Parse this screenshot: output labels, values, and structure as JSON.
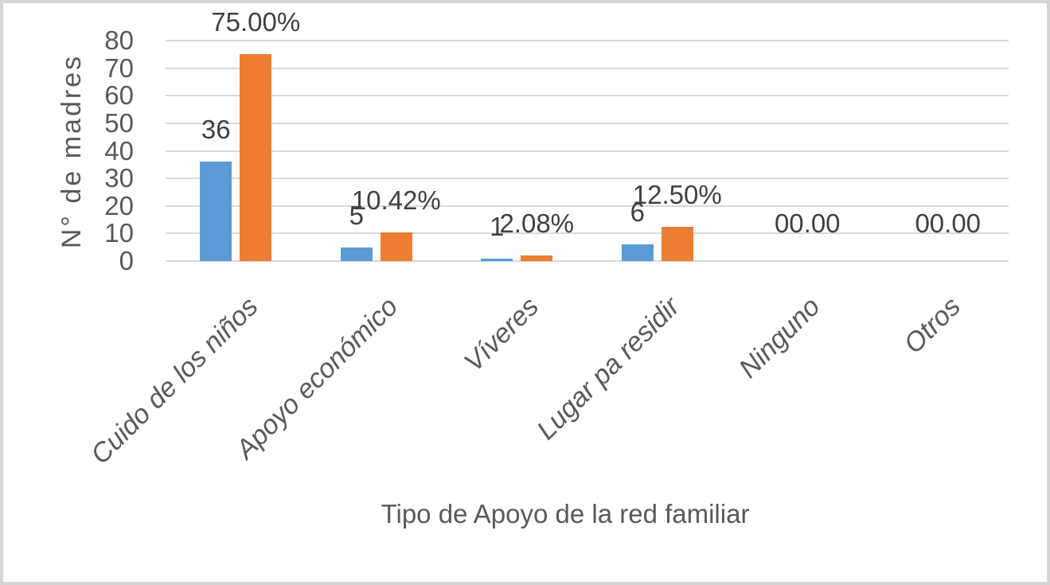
{
  "chart_data": {
    "type": "bar",
    "title": "",
    "xlabel": "Tipo de Apoyo de la red familiar",
    "ylabel": "N° de madres",
    "ylim": [
      0,
      80
    ],
    "yticks": [
      0,
      10,
      20,
      30,
      40,
      50,
      60,
      70,
      80
    ],
    "grid": true,
    "legend": false,
    "categories": [
      "Cuido de los niños",
      "Apoyo económico",
      "Víveres",
      "Lugar pa residir",
      "Ninguno",
      "Otros"
    ],
    "series": [
      {
        "name": "series_1",
        "color": "#5b9bd5",
        "values": [
          36,
          5,
          1,
          6,
          0,
          0
        ],
        "data_labels": [
          "36",
          "5",
          "1",
          "6",
          "",
          ""
        ]
      },
      {
        "name": "series_2",
        "color": "#ed7d31",
        "values": [
          75,
          10.42,
          2.08,
          12.5,
          0,
          0
        ],
        "data_labels": [
          "75.00%",
          "10.42%",
          "2.08%",
          "12.50%",
          "",
          ""
        ]
      }
    ],
    "overlapped_zero_labels": [
      {
        "category": "Ninguno",
        "text": "00.00"
      },
      {
        "category": "Otros",
        "text": "00.00"
      }
    ]
  },
  "colors": {
    "bar_blue": "#5b9bd5",
    "bar_orange": "#ed7d31",
    "gridline": "#d9d9d9",
    "axis_text": "#595959",
    "data_label_text": "#404040",
    "frame_border": "#d6d6d6",
    "background": "#ffffff"
  }
}
